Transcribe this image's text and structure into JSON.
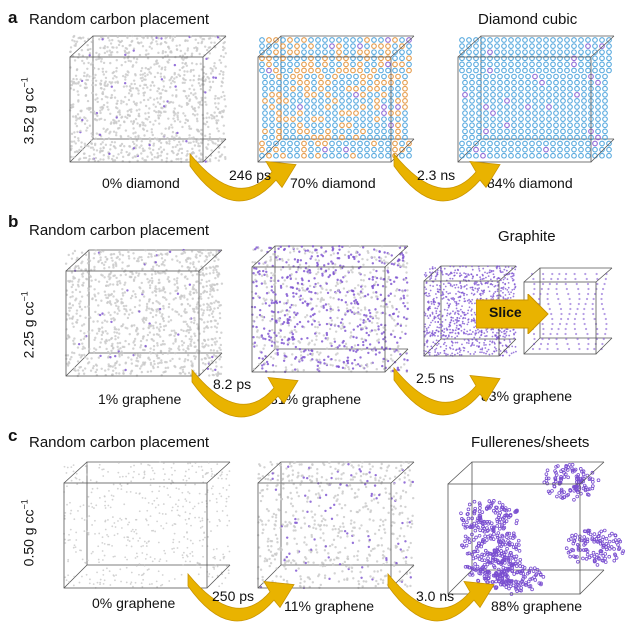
{
  "panels": [
    {
      "letter": "a",
      "title": "Random carbon placement",
      "right_title": "Diamond cubic",
      "density": "3.52 g cc",
      "density_exp": "−1",
      "stages": [
        "0% diamond",
        "70% diamond",
        "84% diamond"
      ],
      "times": [
        "246 ps",
        "2.3 ns"
      ]
    },
    {
      "letter": "b",
      "title": "Random carbon placement",
      "right_title": "Graphite",
      "density": "2.25 g cc",
      "density_exp": "−1",
      "stages": [
        "1% graphene",
        "31% graphene",
        "83% graphene"
      ],
      "times": [
        "8.2 ps",
        "2.5 ns"
      ],
      "slice_label": "Slice"
    },
    {
      "letter": "c",
      "title": "Random carbon placement",
      "right_title": "Fullerenes/sheets",
      "density": "0.50 g cc",
      "density_exp": "−1",
      "stages": [
        "0% graphene",
        "11% graphene",
        "88% graphene"
      ],
      "times": [
        "250 ps",
        "3.0 ns"
      ]
    }
  ],
  "colors": {
    "gray_atom": "#c8c8c8",
    "purple_atom": "#7a4fd0",
    "blue_atom": "#3a9ad8",
    "orange_atom": "#e08a2a",
    "arrow_gold": "#e9b300",
    "box_edge": "#555555"
  }
}
